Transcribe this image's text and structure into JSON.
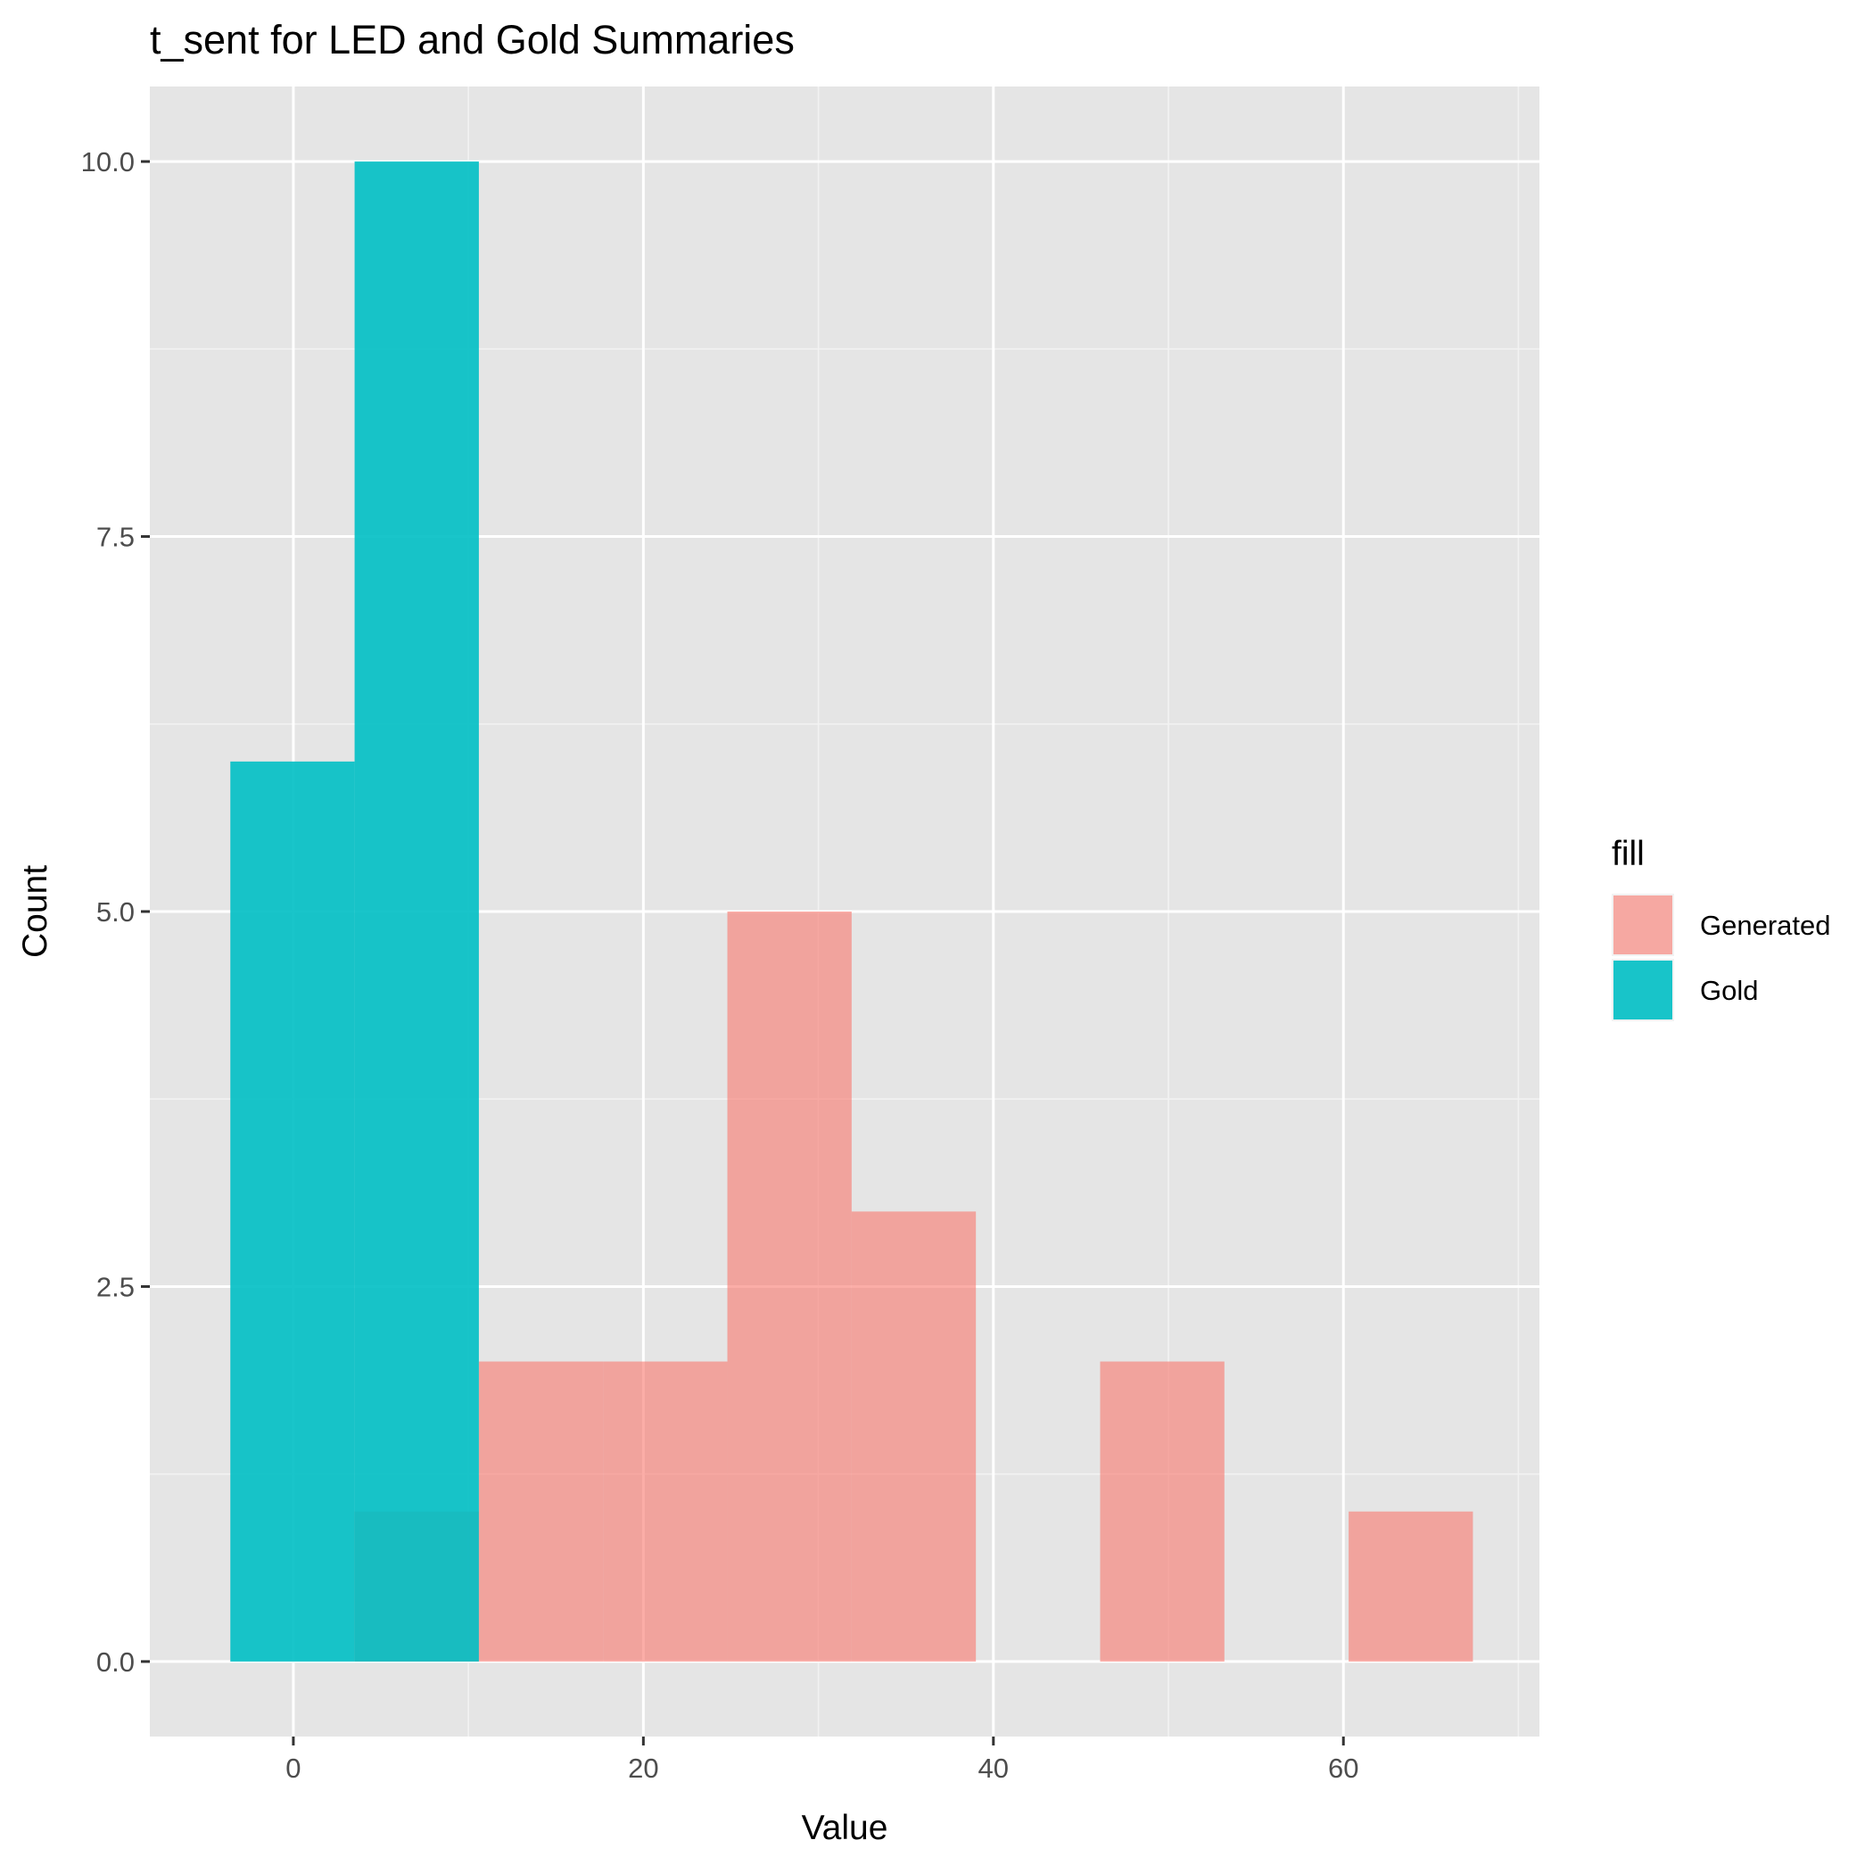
{
  "chart_data": {
    "type": "histogram",
    "title": "t_sent for LED and Gold Summaries",
    "xlabel": "Value",
    "ylabel": "Count",
    "xlim": [
      -8.2,
      71.2
    ],
    "ylim": [
      -0.5,
      10.5
    ],
    "x_ticks": [
      0,
      20,
      40,
      60
    ],
    "x_tick_labels": [
      "0",
      "20",
      "40",
      "60"
    ],
    "y_ticks": [
      0,
      2.5,
      5,
      7.5,
      10
    ],
    "y_tick_labels": [
      "0.0",
      "2.5",
      "5.0",
      "7.5",
      "10.0"
    ],
    "grid": true,
    "legend": {
      "title": "fill",
      "position": "right",
      "entries": [
        "Generated",
        "Gold"
      ]
    },
    "bin_edges": [
      -3.6,
      3.5,
      10.6,
      17.7,
      24.8,
      31.9,
      39.0,
      46.1,
      53.2,
      60.3,
      67.4
    ],
    "series": [
      {
        "name": "Generated",
        "color": "#F8766D",
        "values": [
          0,
          1,
          2,
          2,
          5,
          3,
          0,
          2,
          0,
          1
        ]
      },
      {
        "name": "Gold",
        "color": "#00BFC4",
        "values": [
          6,
          10,
          0,
          0,
          0,
          0,
          0,
          0,
          0,
          0
        ]
      }
    ]
  }
}
